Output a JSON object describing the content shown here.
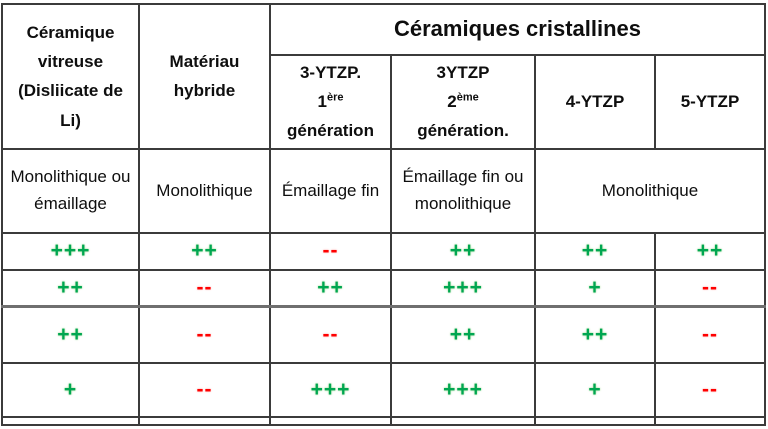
{
  "table": {
    "header": {
      "vitreous": "Céramique vitreuse (Disliicate de Li)",
      "hybrid": "Matériau hybride",
      "crystalline_group": "Céramiques cristallines",
      "sub_columns": [
        {
          "line1": "3-YTZP.",
          "gen_base": "1",
          "gen_sup": "ère",
          "line3": "génération"
        },
        {
          "line1": "3YTZP",
          "gen_base": "2",
          "gen_sup": "ème",
          "line3": "génération."
        },
        {
          "label": "4-YTZP"
        },
        {
          "label": "5-YTZP"
        }
      ]
    },
    "presentation_row": [
      "Monolithique ou émaillage",
      "Monolithique",
      "Émaillage fin",
      "Émaillage fin ou monolithique",
      "Monolithique"
    ],
    "rating_rows": [
      [
        "+++",
        "++",
        "--",
        "++",
        "++",
        "++"
      ],
      [
        "++",
        "--",
        "++",
        "+++",
        "+",
        "--"
      ],
      [
        "++",
        "--",
        "--",
        "++",
        "++",
        "--"
      ],
      [
        "+",
        "--",
        "+++",
        "+++",
        "+",
        "--"
      ]
    ],
    "colors": {
      "positive": "#00A651",
      "positive_glow": "#AEDFA3",
      "negative": "#FF0000",
      "negative_glow": "#FFC2C2",
      "border": "#3B3B3B",
      "text": "#0E0E0E"
    }
  }
}
